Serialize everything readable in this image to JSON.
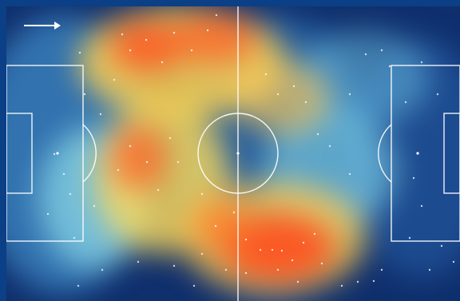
{
  "view": {
    "type": "football-pitch-heatmap",
    "attack_direction": "right",
    "colors": {
      "frame": "#0b3f86",
      "pitch_base": "#0f2f6d",
      "lines": "#ffffff",
      "cool": "#3aa0e8",
      "cyan": "#8fe0f0",
      "warm": "#ffd24a",
      "hot": "#ff5a1f"
    },
    "icons": {
      "direction": "arrow-right-icon"
    }
  }
}
